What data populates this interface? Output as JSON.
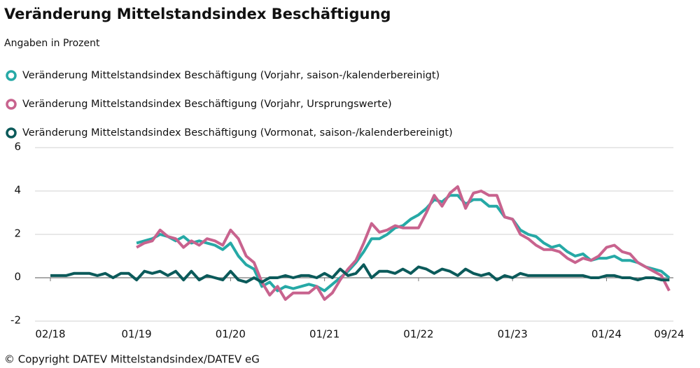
{
  "chart_data": {
    "type": "line",
    "title": "Veränderung Mittelstandsindex Beschäftigung",
    "subtitle": "Angaben in Prozent",
    "footer": "© Copyright DATEV Mittelstandsindex/DATEV eG",
    "categories": [
      "02/18",
      null,
      null,
      null,
      null,
      null,
      null,
      null,
      null,
      null,
      null,
      "01/19",
      null,
      null,
      null,
      null,
      null,
      null,
      null,
      null,
      null,
      null,
      null,
      "01/20",
      null,
      null,
      null,
      null,
      null,
      null,
      null,
      null,
      null,
      null,
      null,
      "01/21",
      null,
      null,
      null,
      null,
      null,
      null,
      null,
      null,
      null,
      null,
      null,
      "01/22",
      null,
      null,
      null,
      null,
      null,
      null,
      null,
      null,
      null,
      null,
      null,
      "01/23",
      null,
      null,
      null,
      null,
      null,
      null,
      null,
      null,
      null,
      null,
      null,
      "01/24",
      null,
      null,
      null,
      null,
      null,
      null,
      null,
      "09/24"
    ],
    "series": [
      {
        "name": "Veränderung Mittelstandsindex Beschäftigung (Vorjahr, saison-/kalenderbereinigt)",
        "color": "#26a9a6",
        "values": [
          null,
          null,
          null,
          null,
          null,
          null,
          null,
          null,
          null,
          null,
          null,
          1.6,
          1.7,
          1.8,
          2.0,
          1.9,
          1.7,
          1.9,
          1.6,
          1.7,
          1.6,
          1.5,
          1.3,
          1.6,
          1.0,
          0.6,
          0.4,
          -0.4,
          -0.2,
          -0.6,
          -0.4,
          -0.5,
          -0.4,
          -0.3,
          -0.4,
          -0.6,
          -0.3,
          0.0,
          0.3,
          0.7,
          1.2,
          1.8,
          1.8,
          2.0,
          2.3,
          2.4,
          2.7,
          2.9,
          3.2,
          3.6,
          3.5,
          3.8,
          3.8,
          3.4,
          3.6,
          3.6,
          3.3,
          3.3,
          2.8,
          2.7,
          2.2,
          2.0,
          1.9,
          1.6,
          1.4,
          1.5,
          1.2,
          1.0,
          1.1,
          0.8,
          0.9,
          0.9,
          1.0,
          0.8,
          0.8,
          0.7,
          0.5,
          0.4,
          0.3,
          0.0
        ]
      },
      {
        "name": "Veränderung Mittelstandsindex Beschäftigung (Vorjahr, Ursprungswerte)",
        "color": "#c8638e",
        "values": [
          null,
          null,
          null,
          null,
          null,
          null,
          null,
          null,
          null,
          null,
          null,
          1.4,
          1.6,
          1.7,
          2.2,
          1.9,
          1.8,
          1.4,
          1.7,
          1.5,
          1.8,
          1.7,
          1.5,
          2.2,
          1.8,
          1.0,
          0.7,
          -0.2,
          -0.8,
          -0.4,
          -1.0,
          -0.7,
          -0.7,
          -0.7,
          -0.4,
          -1.0,
          -0.7,
          -0.1,
          0.4,
          0.8,
          1.6,
          2.5,
          2.1,
          2.2,
          2.4,
          2.3,
          2.3,
          2.3,
          3.0,
          3.8,
          3.3,
          3.9,
          4.2,
          3.2,
          3.9,
          4.0,
          3.8,
          3.8,
          2.8,
          2.7,
          2.0,
          1.8,
          1.5,
          1.3,
          1.3,
          1.2,
          0.9,
          0.7,
          0.9,
          0.8,
          1.0,
          1.4,
          1.5,
          1.2,
          1.1,
          0.7,
          0.5,
          0.3,
          0.1,
          -0.6
        ]
      },
      {
        "name": "Veränderung Mittelstandsindex Beschäftigung (Vormonat, saison-/kalenderbereinigt)",
        "color": "#0b5a5a",
        "values": [
          0.1,
          0.1,
          0.1,
          0.2,
          0.2,
          0.2,
          0.1,
          0.2,
          0.0,
          0.2,
          0.2,
          -0.1,
          0.3,
          0.2,
          0.3,
          0.1,
          0.3,
          -0.1,
          0.3,
          -0.1,
          0.1,
          0.0,
          -0.1,
          0.3,
          -0.1,
          -0.2,
          0.0,
          -0.2,
          0.0,
          0.0,
          0.1,
          0.0,
          0.1,
          0.1,
          0.0,
          0.2,
          0.0,
          0.4,
          0.1,
          0.2,
          0.6,
          0.0,
          0.3,
          0.3,
          0.2,
          0.4,
          0.2,
          0.5,
          0.4,
          0.2,
          0.4,
          0.3,
          0.1,
          0.4,
          0.2,
          0.1,
          0.2,
          -0.1,
          0.1,
          0.0,
          0.2,
          0.1,
          0.1,
          0.1,
          0.1,
          0.1,
          0.1,
          0.1,
          0.1,
          0.0,
          0.0,
          0.1,
          0.1,
          0.0,
          0.0,
          -0.1,
          0.0,
          0.0,
          -0.1,
          -0.1
        ]
      }
    ],
    "ylim": [
      -2,
      6
    ],
    "yticks": [
      -2,
      0,
      2,
      4,
      6
    ],
    "grid": true
  }
}
